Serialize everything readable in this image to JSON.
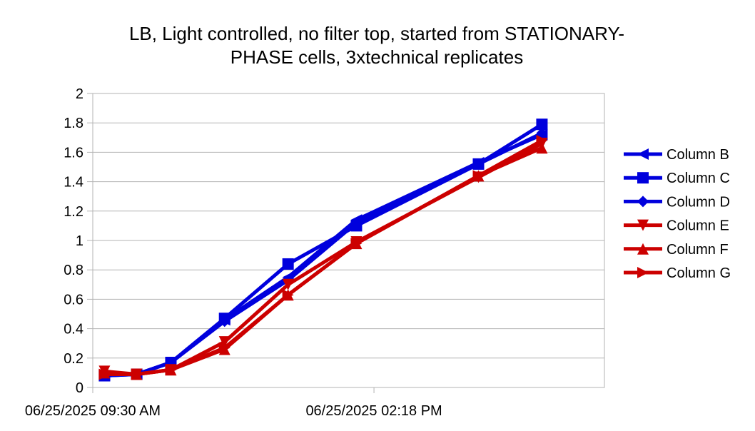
{
  "chart_data": {
    "type": "line",
    "title": "LB, Light controlled, no filter top, started from STATIONARY-PHASE cells, 3xtechnical replicates",
    "title_lines": [
      "LB, Light controlled, no filter top, started from STATIONARY-",
      "PHASE cells, 3xtechnical replicates"
    ],
    "xlabel": "",
    "ylabel": "",
    "x_axis_type": "datetime",
    "x_tick_labels": [
      "06/25/2025 09:30 AM",
      "06/25/2025 02:18 PM"
    ],
    "x_ticks_minutes": [
      0,
      288
    ],
    "xlim_minutes": [
      0,
      524
    ],
    "ylim": [
      0,
      2
    ],
    "y_ticks": [
      "0",
      "0.2",
      "0.4",
      "0.6",
      "0.8",
      "1",
      "1.2",
      "1.4",
      "1.6",
      "1.8",
      "2"
    ],
    "grid": "horizontal",
    "legend_position": "right",
    "x_minutes": [
      12,
      45,
      80,
      135,
      200,
      270,
      395,
      460
    ],
    "series": [
      {
        "name": "Column B",
        "color": "#0000dd",
        "marker": "triangle-left",
        "values": [
          0.08,
          0.09,
          0.17,
          0.46,
          0.75,
          1.14,
          1.53,
          1.72
        ]
      },
      {
        "name": "Column C",
        "color": "#0000dd",
        "marker": "square",
        "values": [
          0.08,
          0.09,
          0.17,
          0.47,
          0.84,
          1.1,
          1.52,
          1.79
        ]
      },
      {
        "name": "Column D",
        "color": "#0000dd",
        "marker": "diamond",
        "values": [
          0.09,
          0.09,
          0.17,
          0.45,
          0.73,
          1.12,
          1.52,
          1.73
        ]
      },
      {
        "name": "Column E",
        "color": "#cc0000",
        "marker": "triangle-down",
        "values": [
          0.11,
          0.09,
          0.12,
          0.31,
          0.7,
          0.99,
          1.43,
          1.66
        ]
      },
      {
        "name": "Column F",
        "color": "#cc0000",
        "marker": "triangle-up",
        "values": [
          0.1,
          0.09,
          0.12,
          0.26,
          0.63,
          0.98,
          1.44,
          1.63
        ]
      },
      {
        "name": "Column G",
        "color": "#cc0000",
        "marker": "triangle-right",
        "values": [
          0.09,
          0.09,
          0.12,
          0.27,
          0.63,
          0.98,
          1.44,
          1.68
        ]
      }
    ]
  }
}
